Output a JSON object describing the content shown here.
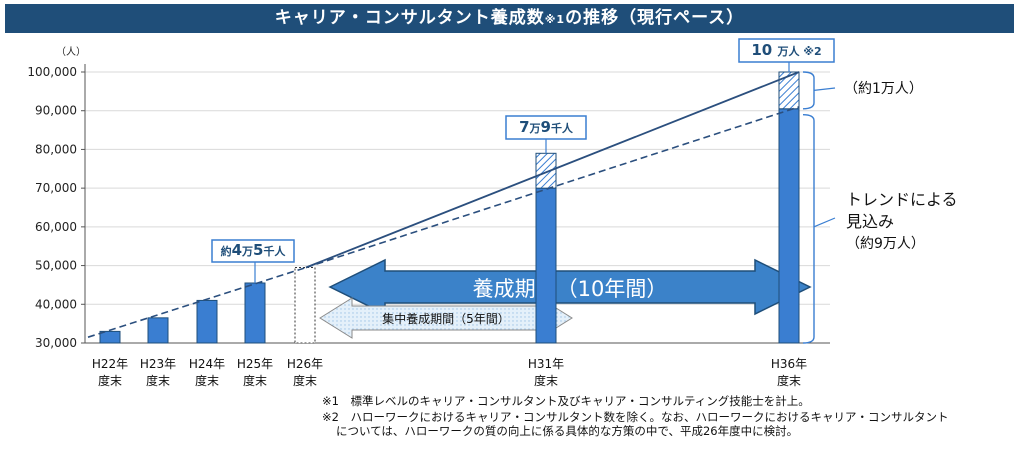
{
  "header": {
    "title_main": "キャリア・コンサルタント養成数",
    "title_sup": "※1",
    "title_tail": "の推移（現行ペース）"
  },
  "chart_data": {
    "type": "bar",
    "title": "キャリア・コンサルタント養成数※1の推移（現行ペース）",
    "ylabel": "（人）",
    "ylim": [
      30000,
      100000
    ],
    "yticks": [
      "30,000",
      "40,000",
      "50,000",
      "60,000",
      "70,000",
      "80,000",
      "90,000",
      "100,000"
    ],
    "categories": [
      {
        "line1": "H22年",
        "line2": "度末"
      },
      {
        "line1": "H23年",
        "line2": "度末"
      },
      {
        "line1": "H24年",
        "line2": "度末"
      },
      {
        "line1": "H25年",
        "line2": "度末"
      },
      {
        "line1": "H26年",
        "line2": "度末"
      },
      {
        "line1": "H31年",
        "line2": "度末"
      },
      {
        "line1": "H36年",
        "line2": "度末"
      }
    ],
    "series": [
      {
        "values": [
          33000,
          36500,
          41000,
          45500,
          49500,
          70000,
          90500
        ]
      },
      {
        "values": [
          null,
          null,
          null,
          null,
          null,
          79000,
          100000
        ]
      }
    ],
    "projected_bar": "H26年度末",
    "trend_solid": {
      "start_value": 31500,
      "end_value": 100000
    },
    "trend_dashed": {
      "start_value": 31500,
      "end_value": 91000
    },
    "callouts": {
      "h25": {
        "pre": "約",
        "a": "4",
        "b": "万",
        "c": "5",
        "d": "千人"
      },
      "h31": {
        "a": "7",
        "b": "万",
        "c": "9",
        "d": "千人"
      },
      "h36": {
        "a": "10",
        "b": "万人",
        "note": "※2"
      }
    },
    "annotations": {
      "approx_10k": "（約1万人）",
      "trend_line1": "トレンドによる",
      "trend_line2": "見込み",
      "trend_line3": "（約9万人）",
      "period_10y": "養成期間（10年間）",
      "period_5y": "集中養成期間（5年間）"
    },
    "colors": {
      "bar": "#3a7ed1",
      "bar_edge": "#1f4e79",
      "line": "#2b4f7e",
      "arrow_big": "#3b82c9",
      "arrow_small": "#e4f0fa"
    }
  },
  "footnotes": {
    "n1": "※1　標準レベルのキャリア・コンサルタント及びキャリア・コンサルティング技能士を計上。",
    "n2_line1": "※2　ハローワークにおけるキャリア・コンサルタント数を除く。なお、ハローワークにおけるキャリア・コンサルタント",
    "n2_line2": "については、ハローワークの質の向上に係る具体的な方策の中で、平成26年度中に検討。"
  }
}
